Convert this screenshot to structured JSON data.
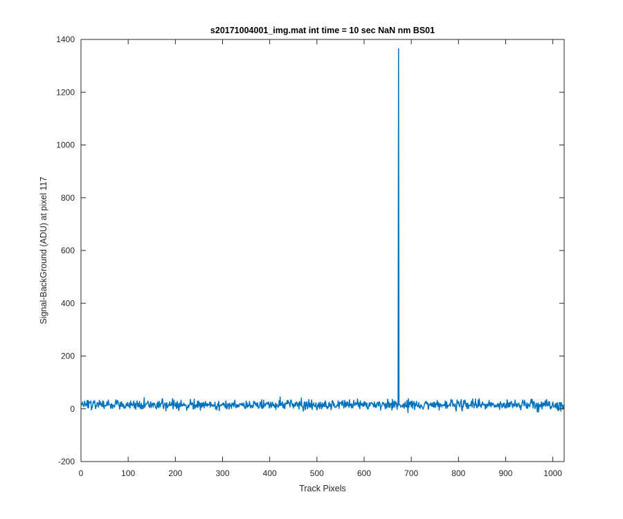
{
  "chart_data": {
    "type": "line",
    "title": "s20171004001_img.mat int time = 10 sec  NaN nm BS01",
    "xlabel": "Track Pixels",
    "ylabel": "Signal-BackGround (ADU) at pixel 117",
    "xlim": [
      0,
      1024
    ],
    "ylim": [
      -200,
      1400
    ],
    "xticks": [
      0,
      100,
      200,
      300,
      400,
      500,
      600,
      700,
      800,
      900,
      1000
    ],
    "yticks": [
      -200,
      0,
      200,
      400,
      600,
      800,
      1000,
      1200,
      1400
    ],
    "grid": false,
    "series": [
      {
        "color": "#0072BD",
        "n_points": 1024,
        "baseline_mean": 15,
        "noise_range": [
          -45,
          75
        ],
        "spikes": [
          {
            "x": 672,
            "y": 10
          },
          {
            "x": 673,
            "y": 1365
          },
          {
            "x": 674,
            "y": 20
          }
        ]
      }
    ]
  }
}
